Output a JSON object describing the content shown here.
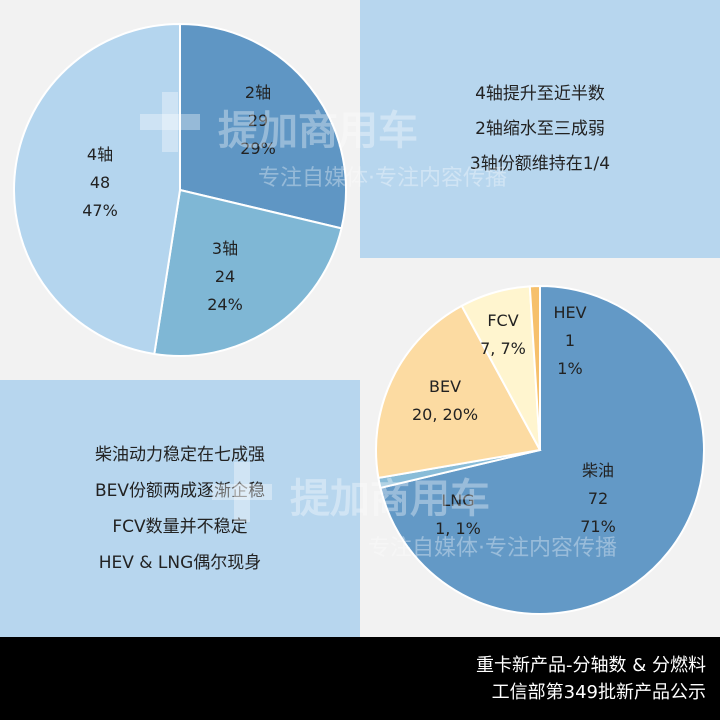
{
  "panels": {
    "axle_notes": [
      "4轴提升至近半数",
      "2轴缩水至三成弱",
      "3轴份额维持在1/4"
    ],
    "fuel_notes": [
      "柴油动力稳定在七成强",
      "BEV份额两成逐渐企稳",
      "FCV数量并不稳定",
      "HEV & LNG偶尔现身"
    ]
  },
  "footer": {
    "line1": "重卡新产品-分轴数 & 分燃料",
    "line2": "工信部第349批新产品公示"
  },
  "watermark": {
    "brand": "提加商用车",
    "slogan": "专注自媒体·专注内容传播"
  },
  "chart_data": [
    {
      "type": "pie",
      "categories": [
        "2轴",
        "3轴",
        "4轴"
      ],
      "values": [
        29,
        24,
        48
      ],
      "percents": [
        "29%",
        "24%",
        "47%"
      ],
      "colors": [
        "#5f96c4",
        "#7fb7d5",
        "#b4d5ee"
      ],
      "start": "12 o'clock, clockwise"
    },
    {
      "type": "pie",
      "categories": [
        "柴油",
        "LNG",
        "BEV",
        "FCV",
        "HEV"
      ],
      "values": [
        72,
        1,
        20,
        7,
        1
      ],
      "percents": [
        "71%",
        "1%",
        "20%",
        "7%",
        "1%"
      ],
      "colors": [
        "#6399c6",
        "#89bcd8",
        "#fcdba2",
        "#fff5cf",
        "#f6c06b"
      ],
      "start": "12 o'clock, clockwise"
    }
  ]
}
